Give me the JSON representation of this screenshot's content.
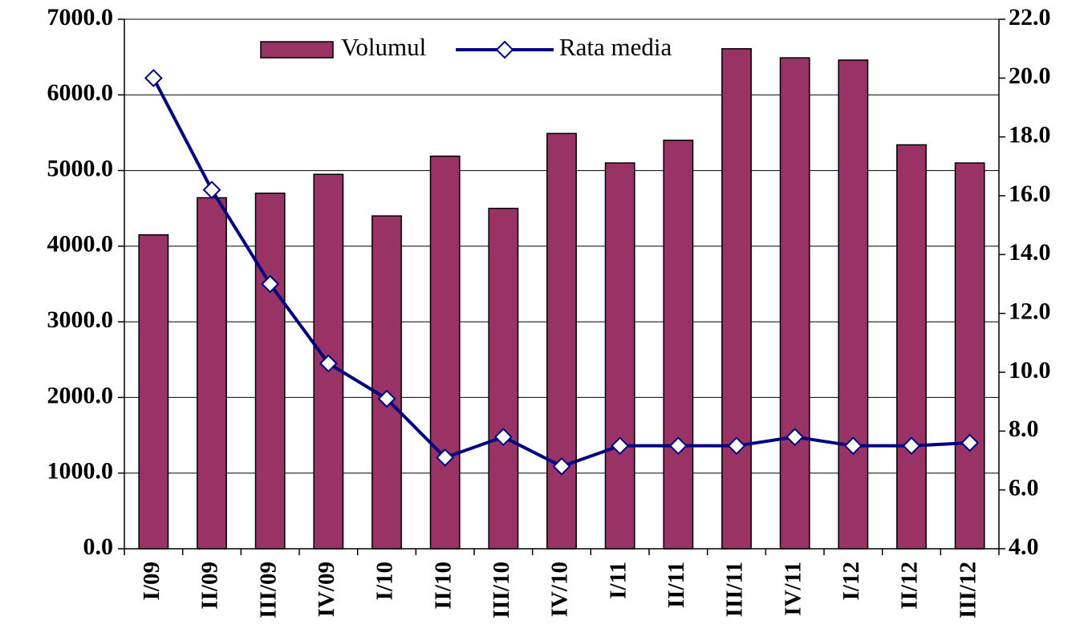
{
  "chart_data": {
    "type": "bar",
    "categories": [
      "I/09",
      "II/09",
      "III/09",
      "IV/09",
      "I/10",
      "II/10",
      "III/10",
      "IV/10",
      "I/11",
      "II/11",
      "III/11",
      "IV/11",
      "I/12",
      "II/12",
      "III/12"
    ],
    "series": [
      {
        "name": "Volumul",
        "type": "bar",
        "color": "#993366",
        "values": [
          4150,
          4640,
          4700,
          4950,
          4400,
          5190,
          4500,
          5490,
          5100,
          5400,
          6610,
          6490,
          6460,
          5340,
          5100
        ]
      },
      {
        "name": "Rata media",
        "type": "line",
        "axis": "y2",
        "color": "#000080",
        "values": [
          20.0,
          16.2,
          13.0,
          10.3,
          9.1,
          7.1,
          7.8,
          6.8,
          7.5,
          7.5,
          7.5,
          7.8,
          7.5,
          7.5,
          7.6
        ]
      }
    ],
    "ylim": [
      0,
      7000
    ],
    "yticks": [
      {
        "value": 0,
        "label": "0.0"
      },
      {
        "value": 1000,
        "label": "1000.0"
      },
      {
        "value": 2000,
        "label": "2000.0"
      },
      {
        "value": 3000,
        "label": "3000.0"
      },
      {
        "value": 4000,
        "label": "4000.0"
      },
      {
        "value": 5000,
        "label": "5000.0"
      },
      {
        "value": 6000,
        "label": "6000.0"
      },
      {
        "value": 7000,
        "label": "7000.0"
      }
    ],
    "y2lim": [
      4,
      22
    ],
    "y2ticks": [
      {
        "value": 4,
        "label": "4.0"
      },
      {
        "value": 6,
        "label": "6.0"
      },
      {
        "value": 8,
        "label": "8.0"
      },
      {
        "value": 10,
        "label": "10.0"
      },
      {
        "value": 12,
        "label": "12.0"
      },
      {
        "value": 14,
        "label": "14.0"
      },
      {
        "value": 16,
        "label": "16.0"
      },
      {
        "value": 18,
        "label": "18.0"
      },
      {
        "value": 20,
        "label": "20.0"
      },
      {
        "value": 22,
        "label": "22.0"
      }
    ],
    "grid": true,
    "legend": "top"
  }
}
